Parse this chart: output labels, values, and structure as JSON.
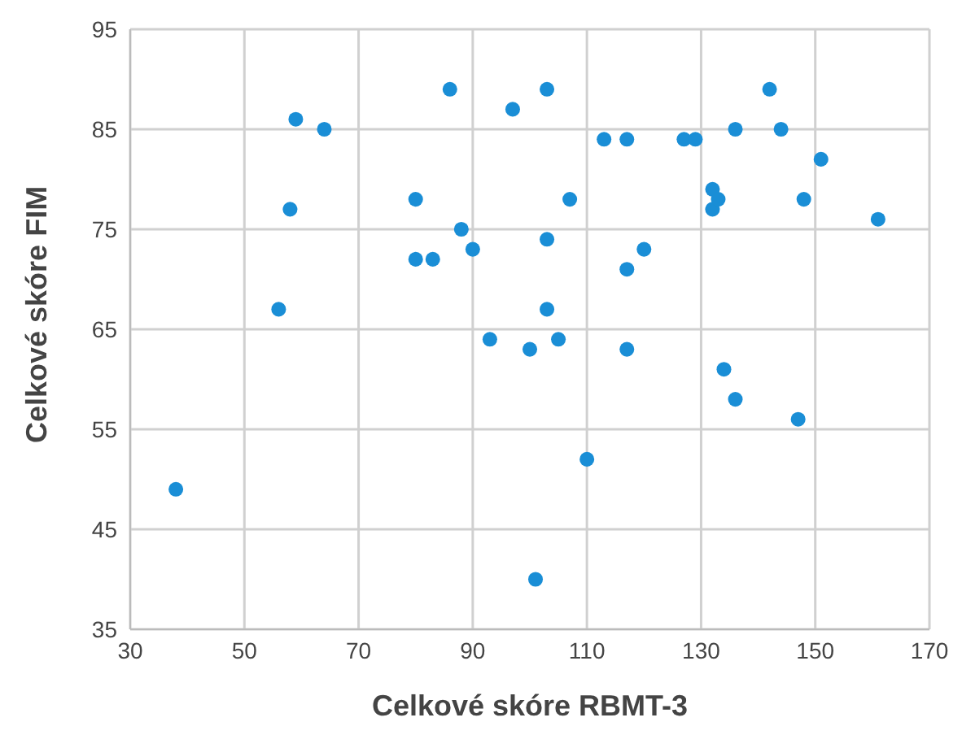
{
  "chart_data": {
    "type": "scatter",
    "xlabel": "Celkové skóre RBMT-3",
    "ylabel": "Celkové skóre FIM",
    "x": [
      38,
      56,
      58,
      59,
      64,
      80,
      80,
      83,
      86,
      88,
      90,
      93,
      97,
      100,
      101,
      103,
      103,
      103,
      105,
      107,
      110,
      113,
      117,
      117,
      117,
      120,
      127,
      129,
      132,
      132,
      133,
      134,
      136,
      136,
      142,
      144,
      147,
      148,
      151,
      161
    ],
    "values": [
      49,
      67,
      77,
      86,
      85,
      78,
      72,
      72,
      89,
      75,
      73,
      64,
      87,
      63,
      40,
      89,
      74,
      67,
      64,
      78,
      52,
      84,
      84,
      71,
      63,
      73,
      84,
      84,
      79,
      77,
      78,
      61,
      85,
      58,
      89,
      85,
      56,
      78,
      82,
      76
    ],
    "color": "#1a8ed6",
    "marker": "circle",
    "xlim": [
      30,
      170
    ],
    "xticks": [
      30,
      50,
      70,
      90,
      110,
      130,
      150,
      170
    ],
    "ylim": [
      35,
      95
    ],
    "yticks": [
      35,
      45,
      55,
      65,
      75,
      85,
      95
    ],
    "grid": true,
    "legend": false
  }
}
